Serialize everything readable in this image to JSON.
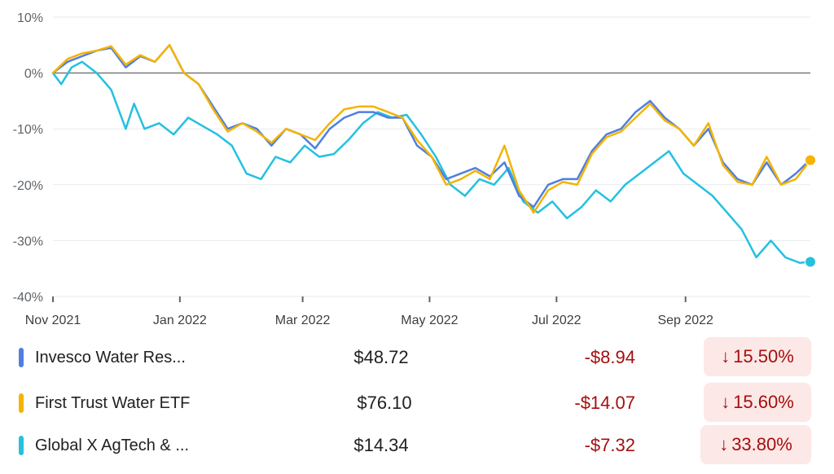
{
  "chart_data": {
    "type": "line",
    "y_ticks": [
      "10%",
      "0%",
      "-10%",
      "-20%",
      "-30%",
      "-40%"
    ],
    "x_ticks": [
      "Nov 2021",
      "Jan 2022",
      "Mar 2022",
      "May 2022",
      "Jul 2022",
      "Sep 2022"
    ],
    "ylim": [
      -40,
      10
    ],
    "xlim": [
      "2021-11-01",
      "2022-10-31"
    ],
    "grid": true,
    "baseline": 0,
    "series": [
      {
        "name": "Invesco Water Res...",
        "color": "#4f7fe0",
        "points": [
          [
            "2021-11-01",
            0
          ],
          [
            "2021-11-08",
            2.0
          ],
          [
            "2021-11-15",
            3.0
          ],
          [
            "2021-11-22",
            4.0
          ],
          [
            "2021-11-29",
            4.5
          ],
          [
            "2021-12-06",
            1.0
          ],
          [
            "2021-12-13",
            3.0
          ],
          [
            "2021-12-20",
            2.0
          ],
          [
            "2021-12-27",
            5.0
          ],
          [
            "2022-01-03",
            0.0
          ],
          [
            "2022-01-10",
            -2.0
          ],
          [
            "2022-01-17",
            -6.0
          ],
          [
            "2022-01-24",
            -10.0
          ],
          [
            "2022-01-31",
            -9.0
          ],
          [
            "2022-02-07",
            -10.0
          ],
          [
            "2022-02-14",
            -13.0
          ],
          [
            "2022-02-21",
            -10.0
          ],
          [
            "2022-02-28",
            -11.0
          ],
          [
            "2022-03-07",
            -13.5
          ],
          [
            "2022-03-14",
            -10.0
          ],
          [
            "2022-03-21",
            -8.0
          ],
          [
            "2022-03-28",
            -7.0
          ],
          [
            "2022-04-04",
            -7.0
          ],
          [
            "2022-04-11",
            -8.0
          ],
          [
            "2022-04-18",
            -8.0
          ],
          [
            "2022-04-25",
            -13.0
          ],
          [
            "2022-05-02",
            -15.0
          ],
          [
            "2022-05-09",
            -19.0
          ],
          [
            "2022-05-16",
            -18.0
          ],
          [
            "2022-05-23",
            -17.0
          ],
          [
            "2022-05-30",
            -18.5
          ],
          [
            "2022-06-06",
            -16.0
          ],
          [
            "2022-06-13",
            -22.0
          ],
          [
            "2022-06-20",
            -24.0
          ],
          [
            "2022-06-27",
            -20.0
          ],
          [
            "2022-07-04",
            -19.0
          ],
          [
            "2022-07-11",
            -19.0
          ],
          [
            "2022-07-18",
            -14.0
          ],
          [
            "2022-07-25",
            -11.0
          ],
          [
            "2022-08-01",
            -10.0
          ],
          [
            "2022-08-08",
            -7.0
          ],
          [
            "2022-08-15",
            -5.0
          ],
          [
            "2022-08-22",
            -8.0
          ],
          [
            "2022-08-29",
            -10.0
          ],
          [
            "2022-09-05",
            -13.0
          ],
          [
            "2022-09-12",
            -10.0
          ],
          [
            "2022-09-19",
            -16.0
          ],
          [
            "2022-09-26",
            -19.0
          ],
          [
            "2022-10-03",
            -20.0
          ],
          [
            "2022-10-10",
            -16.0
          ],
          [
            "2022-10-17",
            -20.0
          ],
          [
            "2022-10-24",
            -18.0
          ],
          [
            "2022-10-31",
            -15.5
          ]
        ]
      },
      {
        "name": "First Trust Water ETF",
        "color": "#f4b400",
        "points": [
          [
            "2021-11-01",
            0
          ],
          [
            "2021-11-08",
            2.5
          ],
          [
            "2021-11-15",
            3.5
          ],
          [
            "2021-11-22",
            4.0
          ],
          [
            "2021-11-29",
            4.8
          ],
          [
            "2021-12-06",
            1.5
          ],
          [
            "2021-12-13",
            3.2
          ],
          [
            "2021-12-20",
            2.0
          ],
          [
            "2021-12-27",
            5.0
          ],
          [
            "2022-01-03",
            0.0
          ],
          [
            "2022-01-10",
            -2.0
          ],
          [
            "2022-01-17",
            -6.5
          ],
          [
            "2022-01-24",
            -10.5
          ],
          [
            "2022-01-31",
            -9.0
          ],
          [
            "2022-02-07",
            -10.5
          ],
          [
            "2022-02-14",
            -12.5
          ],
          [
            "2022-02-21",
            -10.0
          ],
          [
            "2022-02-28",
            -11.0
          ],
          [
            "2022-03-07",
            -12.0
          ],
          [
            "2022-03-14",
            -9.0
          ],
          [
            "2022-03-21",
            -6.5
          ],
          [
            "2022-03-28",
            -6.0
          ],
          [
            "2022-04-04",
            -6.0
          ],
          [
            "2022-04-11",
            -7.0
          ],
          [
            "2022-04-18",
            -8.0
          ],
          [
            "2022-04-25",
            -12.0
          ],
          [
            "2022-05-02",
            -15.0
          ],
          [
            "2022-05-09",
            -20.0
          ],
          [
            "2022-05-16",
            -19.0
          ],
          [
            "2022-05-23",
            -17.5
          ],
          [
            "2022-05-30",
            -19.0
          ],
          [
            "2022-06-06",
            -13.0
          ],
          [
            "2022-06-13",
            -21.0
          ],
          [
            "2022-06-20",
            -25.0
          ],
          [
            "2022-06-27",
            -21.0
          ],
          [
            "2022-07-04",
            -19.5
          ],
          [
            "2022-07-11",
            -20.0
          ],
          [
            "2022-07-18",
            -14.5
          ],
          [
            "2022-07-25",
            -11.5
          ],
          [
            "2022-08-01",
            -10.5
          ],
          [
            "2022-08-08",
            -8.0
          ],
          [
            "2022-08-15",
            -5.5
          ],
          [
            "2022-08-22",
            -8.5
          ],
          [
            "2022-08-29",
            -10.0
          ],
          [
            "2022-09-05",
            -13.0
          ],
          [
            "2022-09-12",
            -9.0
          ],
          [
            "2022-09-19",
            -16.5
          ],
          [
            "2022-09-26",
            -19.5
          ],
          [
            "2022-10-03",
            -20.0
          ],
          [
            "2022-10-10",
            -15.0
          ],
          [
            "2022-10-17",
            -20.0
          ],
          [
            "2022-10-24",
            -19.0
          ],
          [
            "2022-10-31",
            -15.6
          ]
        ]
      },
      {
        "name": "Global X AgTech & ...",
        "color": "#24c1e0",
        "points": [
          [
            "2021-11-01",
            0
          ],
          [
            "2021-11-05",
            -2.0
          ],
          [
            "2021-11-10",
            1.0
          ],
          [
            "2021-11-15",
            2.0
          ],
          [
            "2021-11-22",
            0.0
          ],
          [
            "2021-11-29",
            -3.0
          ],
          [
            "2021-12-06",
            -10.0
          ],
          [
            "2021-12-10",
            -5.5
          ],
          [
            "2021-12-15",
            -10.0
          ],
          [
            "2021-12-22",
            -9.0
          ],
          [
            "2021-12-29",
            -11.0
          ],
          [
            "2022-01-05",
            -8.0
          ],
          [
            "2022-01-12",
            -9.5
          ],
          [
            "2022-01-19",
            -11.0
          ],
          [
            "2022-01-26",
            -13.0
          ],
          [
            "2022-02-02",
            -18.0
          ],
          [
            "2022-02-09",
            -19.0
          ],
          [
            "2022-02-16",
            -15.0
          ],
          [
            "2022-02-23",
            -16.0
          ],
          [
            "2022-03-02",
            -13.0
          ],
          [
            "2022-03-09",
            -15.0
          ],
          [
            "2022-03-16",
            -14.5
          ],
          [
            "2022-03-23",
            -12.0
          ],
          [
            "2022-03-30",
            -9.0
          ],
          [
            "2022-04-06",
            -7.0
          ],
          [
            "2022-04-13",
            -8.0
          ],
          [
            "2022-04-20",
            -7.5
          ],
          [
            "2022-04-27",
            -11.0
          ],
          [
            "2022-05-04",
            -15.0
          ],
          [
            "2022-05-11",
            -20.0
          ],
          [
            "2022-05-18",
            -22.0
          ],
          [
            "2022-05-25",
            -19.0
          ],
          [
            "2022-06-01",
            -20.0
          ],
          [
            "2022-06-08",
            -17.0
          ],
          [
            "2022-06-15",
            -23.0
          ],
          [
            "2022-06-22",
            -25.0
          ],
          [
            "2022-06-29",
            -23.0
          ],
          [
            "2022-07-06",
            -26.0
          ],
          [
            "2022-07-13",
            -24.0
          ],
          [
            "2022-07-20",
            -21.0
          ],
          [
            "2022-07-27",
            -23.0
          ],
          [
            "2022-08-03",
            -20.0
          ],
          [
            "2022-08-10",
            -18.0
          ],
          [
            "2022-08-17",
            -16.0
          ],
          [
            "2022-08-24",
            -14.0
          ],
          [
            "2022-08-31",
            -18.0
          ],
          [
            "2022-09-07",
            -20.0
          ],
          [
            "2022-09-14",
            -22.0
          ],
          [
            "2022-09-21",
            -25.0
          ],
          [
            "2022-09-28",
            -28.0
          ],
          [
            "2022-10-05",
            -33.0
          ],
          [
            "2022-10-12",
            -30.0
          ],
          [
            "2022-10-19",
            -33.0
          ],
          [
            "2022-10-26",
            -34.0
          ],
          [
            "2022-10-31",
            -33.8
          ]
        ]
      }
    ]
  },
  "legend": [
    {
      "name": "Invesco Water Res...",
      "color": "#4f7fe0",
      "price": "$48.72",
      "change": "-$8.94",
      "arrow": "↓",
      "pct": "15.50%"
    },
    {
      "name": "First Trust Water ETF",
      "color": "#f4b400",
      "price": "$76.10",
      "change": "-$14.07",
      "arrow": "↓",
      "pct": "15.60%"
    },
    {
      "name": "Global X AgTech & ...",
      "color": "#24c1e0",
      "price": "$14.34",
      "change": "-$7.32",
      "arrow": "↓",
      "pct": "33.80%"
    }
  ]
}
